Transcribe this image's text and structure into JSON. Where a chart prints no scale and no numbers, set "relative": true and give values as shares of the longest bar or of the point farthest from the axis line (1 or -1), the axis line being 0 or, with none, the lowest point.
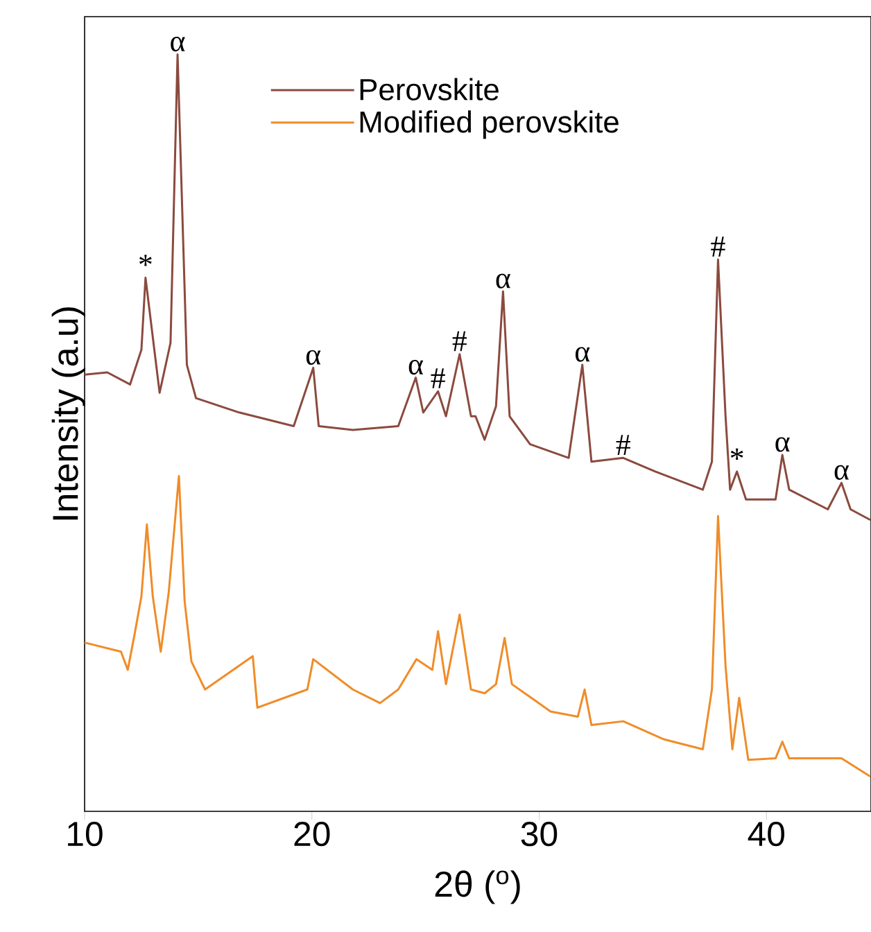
{
  "chart_data": {
    "type": "line",
    "relative": true,
    "xlabel": "2θ ($^{o}$)",
    "ylabel": "Intensity (a.u)",
    "xlim": [
      10,
      44.6
    ],
    "xticks": [
      10,
      20,
      30,
      40
    ],
    "legend": "top",
    "grid": false,
    "marker": "none",
    "line_style": "solid",
    "series": [
      {
        "name": "Perovskite",
        "color": "#8b4a3e",
        "x": [
          10.0,
          11.0,
          12.0,
          12.5,
          12.68,
          13.3,
          13.78,
          14.09,
          14.5,
          14.9,
          16.8,
          19.2,
          20.06,
          20.3,
          21.8,
          23.8,
          24.57,
          24.9,
          25.55,
          25.9,
          26.5,
          27.0,
          27.2,
          27.6,
          28.1,
          28.41,
          28.7,
          29.6,
          31.3,
          31.9,
          32.3,
          33.7,
          35.1,
          37.2,
          37.6,
          37.87,
          38.2,
          38.4,
          38.7,
          39.1,
          40.4,
          40.7,
          41.0,
          42.7,
          43.3,
          43.7,
          44.57
        ],
        "values": [
          0.577,
          0.58,
          0.564,
          0.61,
          0.705,
          0.553,
          0.619,
          1.0,
          0.59,
          0.546,
          0.527,
          0.509,
          0.586,
          0.509,
          0.504,
          0.509,
          0.573,
          0.527,
          0.555,
          0.522,
          0.604,
          0.522,
          0.522,
          0.491,
          0.535,
          0.687,
          0.522,
          0.485,
          0.467,
          0.59,
          0.462,
          0.467,
          0.449,
          0.425,
          0.462,
          0.729,
          0.522,
          0.425,
          0.449,
          0.412,
          0.412,
          0.471,
          0.425,
          0.399,
          0.434,
          0.399,
          0.385
        ]
      },
      {
        "name": "Modified perovskite",
        "color": "#f08c28",
        "x": [
          10.0,
          11.6,
          11.9,
          12.2,
          12.5,
          12.74,
          13.0,
          13.35,
          13.7,
          14.15,
          14.4,
          14.7,
          15.3,
          17.4,
          17.6,
          19.8,
          20.06,
          21.8,
          23.0,
          23.8,
          24.6,
          25.3,
          25.55,
          25.9,
          26.5,
          27.0,
          27.6,
          28.1,
          28.48,
          28.8,
          30.5,
          31.7,
          32.0,
          32.3,
          33.7,
          35.5,
          37.2,
          37.6,
          37.87,
          38.2,
          38.5,
          38.8,
          39.2,
          40.4,
          40.7,
          41.0,
          43.3,
          44.57
        ],
        "values": [
          0.223,
          0.211,
          0.187,
          0.234,
          0.284,
          0.379,
          0.284,
          0.211,
          0.289,
          0.443,
          0.278,
          0.198,
          0.161,
          0.205,
          0.137,
          0.161,
          0.201,
          0.161,
          0.143,
          0.161,
          0.201,
          0.187,
          0.238,
          0.168,
          0.26,
          0.161,
          0.156,
          0.168,
          0.229,
          0.168,
          0.132,
          0.125,
          0.161,
          0.114,
          0.119,
          0.095,
          0.082,
          0.161,
          0.39,
          0.192,
          0.082,
          0.15,
          0.068,
          0.07,
          0.092,
          0.07,
          0.07,
          0.046
        ]
      }
    ],
    "annotations": [
      {
        "text": "*",
        "x": 12.68,
        "y": 0.705
      },
      {
        "text": "α",
        "x": 14.09,
        "y": 1.0
      },
      {
        "text": "α",
        "x": 20.06,
        "y": 0.586
      },
      {
        "text": "α",
        "x": 24.57,
        "y": 0.573
      },
      {
        "text": "#",
        "x": 25.55,
        "y": 0.555
      },
      {
        "text": "#",
        "x": 26.5,
        "y": 0.604
      },
      {
        "text": "α",
        "x": 28.41,
        "y": 0.687
      },
      {
        "text": "α",
        "x": 31.9,
        "y": 0.59
      },
      {
        "text": "#",
        "x": 33.7,
        "y": 0.467
      },
      {
        "text": "#",
        "x": 37.87,
        "y": 0.729
      },
      {
        "text": "*",
        "x": 38.7,
        "y": 0.449
      },
      {
        "text": "α",
        "x": 40.7,
        "y": 0.471
      },
      {
        "text": "α",
        "x": 43.3,
        "y": 0.434
      }
    ]
  }
}
